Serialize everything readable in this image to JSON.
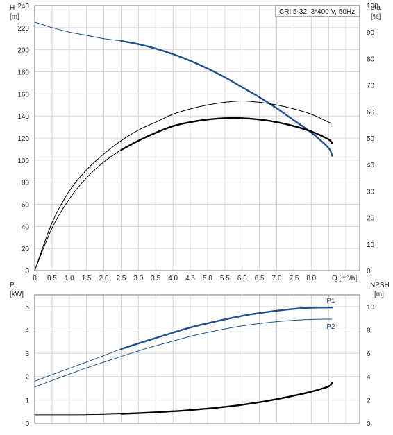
{
  "chart_data": [
    {
      "type": "line",
      "legend": "CRI 5-32, 3*400 V, 50Hz",
      "xlabel": "Q [m³/h]",
      "xticks": [
        "0",
        "0.5",
        "1.0",
        "1.5",
        "2.0",
        "2.5",
        "3.0",
        "3.5",
        "4.0",
        "4.5",
        "5.0",
        "5.5",
        "6.0",
        "6.5",
        "7.0",
        "7.5",
        "8.0"
      ],
      "xlim": [
        0,
        9.4
      ],
      "y_left": {
        "label": "H",
        "unit": "[m]",
        "ticks": [
          0,
          20,
          40,
          60,
          80,
          100,
          120,
          140,
          160,
          180,
          200,
          220,
          240
        ],
        "ylim": [
          0,
          240
        ]
      },
      "y_right": {
        "label": "eta",
        "unit": "[%]",
        "ticks": [
          0,
          10,
          20,
          30,
          40,
          50,
          60,
          70,
          80,
          90,
          100
        ],
        "ylim": [
          0,
          100
        ]
      },
      "series": [
        {
          "axis": "left",
          "color": "#1f4e8c",
          "x": [
            0,
            0.5,
            1.0,
            1.5,
            2.0,
            2.5,
            3.0,
            3.5,
            4.0,
            4.5,
            5.0,
            5.5,
            6.0,
            6.5,
            7.0,
            7.5,
            8.0,
            8.5,
            8.6
          ],
          "y": [
            225,
            220,
            216,
            213,
            210,
            208,
            205,
            201,
            196,
            190,
            183,
            175,
            166,
            157,
            147,
            136,
            125,
            111,
            104
          ],
          "bold_from": 2.5
        },
        {
          "axis": "right",
          "color": "#000000",
          "x": [
            0,
            0.5,
            1.0,
            1.5,
            2.0,
            2.5,
            3.0,
            3.5,
            4.0,
            4.5,
            5.0,
            5.5,
            6.0,
            6.5,
            7.0,
            7.5,
            8.0,
            8.5,
            8.6
          ],
          "y": [
            0,
            18,
            30,
            38,
            44,
            49,
            53,
            56,
            59,
            61,
            62.5,
            63.5,
            64,
            63.5,
            62.5,
            61,
            59,
            56,
            55.5
          ],
          "bold_from": null
        },
        {
          "axis": "right",
          "color": "#000000",
          "x": [
            0,
            0.5,
            1.0,
            1.5,
            2.0,
            2.5,
            3.0,
            3.5,
            4.0,
            4.5,
            5.0,
            5.5,
            6.0,
            6.5,
            7.0,
            7.5,
            8.0,
            8.5,
            8.6
          ],
          "y": [
            0,
            16,
            27,
            35,
            41,
            45.5,
            49,
            52,
            54.5,
            56,
            57,
            57.5,
            57.5,
            57,
            56,
            54.5,
            52.5,
            49.5,
            48
          ],
          "bold_from": 2.5
        }
      ]
    },
    {
      "type": "line",
      "xlim": [
        0,
        9.4
      ],
      "y_left": {
        "label": "P",
        "unit": "[kW]",
        "ticks": [
          0,
          1,
          2,
          3,
          4,
          5
        ],
        "ylim": [
          0,
          5.5
        ]
      },
      "y_right": {
        "label": "NPSH",
        "unit": "[m]",
        "ticks": [
          0,
          2,
          4,
          6,
          8,
          10
        ],
        "ylim": [
          0,
          11
        ]
      },
      "series": [
        {
          "name": "P1",
          "axis": "left",
          "color": "#1f4e8c",
          "x": [
            0,
            0.5,
            1.0,
            1.5,
            2.0,
            2.5,
            3.0,
            3.5,
            4.0,
            4.5,
            5.0,
            5.5,
            6.0,
            6.5,
            7.0,
            7.5,
            8.0,
            8.5,
            8.6
          ],
          "y": [
            1.8,
            2.08,
            2.35,
            2.62,
            2.9,
            3.18,
            3.42,
            3.65,
            3.88,
            4.1,
            4.28,
            4.45,
            4.6,
            4.72,
            4.82,
            4.9,
            4.95,
            4.96,
            4.96
          ],
          "bold_from": 2.5
        },
        {
          "name": "P2",
          "axis": "left",
          "color": "#1f4e8c",
          "x": [
            0,
            0.5,
            1.0,
            1.5,
            2.0,
            2.5,
            3.0,
            3.5,
            4.0,
            4.5,
            5.0,
            5.5,
            6.0,
            6.5,
            7.0,
            7.5,
            8.0,
            8.5,
            8.6
          ],
          "y": [
            1.55,
            1.83,
            2.1,
            2.37,
            2.62,
            2.86,
            3.1,
            3.32,
            3.52,
            3.72,
            3.89,
            4.04,
            4.17,
            4.27,
            4.35,
            4.41,
            4.45,
            4.46,
            4.46
          ],
          "bold_from": null
        },
        {
          "axis": "right",
          "color": "#000000",
          "x": [
            0,
            0.5,
            1.0,
            1.5,
            2.0,
            2.5,
            3.0,
            3.5,
            4.0,
            4.5,
            5.0,
            5.5,
            6.0,
            6.5,
            7.0,
            7.5,
            8.0,
            8.5,
            8.6
          ],
          "y": [
            0.72,
            0.72,
            0.72,
            0.73,
            0.76,
            0.8,
            0.86,
            0.93,
            1.02,
            1.12,
            1.25,
            1.4,
            1.58,
            1.8,
            2.06,
            2.36,
            2.7,
            3.15,
            3.45
          ],
          "bold_from": 2.5
        }
      ]
    }
  ]
}
